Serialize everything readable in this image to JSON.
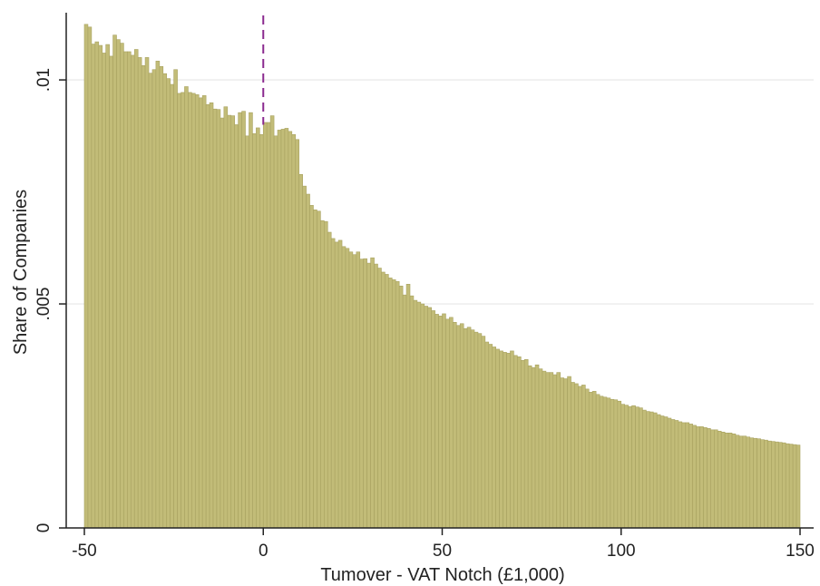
{
  "chart_data": {
    "type": "bar",
    "xlabel": "Tumover - VAT Notch (£1,000)",
    "ylabel": "Share of Companies",
    "xlim": [
      -50,
      150
    ],
    "ylim": [
      0,
      0.0115
    ],
    "x_ticks": [
      -50,
      0,
      50,
      100,
      150
    ],
    "x_tick_labels": [
      "-50",
      "0",
      "50",
      "100",
      "150"
    ],
    "y_ticks": [
      0,
      0.005,
      0.01
    ],
    "y_tick_labels": [
      "0",
      ".005",
      ".01"
    ],
    "grid": "horizontal",
    "bin_width": 1,
    "bin_start": -50,
    "notch_line_x": 0,
    "colors": {
      "bar_fill": "#c2bc78",
      "bar_edge": "#a8a260",
      "notch_line": "#8b2a8f",
      "grid": "#e6e6e6",
      "axis": "#222222"
    },
    "values": [
      0.01124,
      0.01118,
      0.0108,
      0.01085,
      0.01077,
      0.0106,
      0.01079,
      0.01053,
      0.011,
      0.0109,
      0.01082,
      0.01063,
      0.01063,
      0.01055,
      0.01068,
      0.0105,
      0.01032,
      0.0105,
      0.01015,
      0.01023,
      0.01042,
      0.0103,
      0.01014,
      0.01003,
      0.0099,
      0.01023,
      0.0097,
      0.00972,
      0.00985,
      0.00972,
      0.0097,
      0.00967,
      0.0096,
      0.00965,
      0.00945,
      0.00949,
      0.00935,
      0.00934,
      0.00915,
      0.0094,
      0.00921,
      0.0092,
      0.009,
      0.00927,
      0.0093,
      0.00875,
      0.00927,
      0.0088,
      0.00893,
      0.00878,
      0.00905,
      0.00905,
      0.0092,
      0.00875,
      0.00888,
      0.0089,
      0.00892,
      0.00885,
      0.00878,
      0.00867,
      0.00789,
      0.00763,
      0.00745,
      0.0072,
      0.0071,
      0.00707,
      0.00686,
      0.00684,
      0.0066,
      0.00646,
      0.00638,
      0.00642,
      0.00628,
      0.00624,
      0.00616,
      0.0061,
      0.00616,
      0.006,
      0.00601,
      0.00591,
      0.00603,
      0.00589,
      0.0058,
      0.00571,
      0.00566,
      0.00558,
      0.00554,
      0.0055,
      0.0054,
      0.0052,
      0.00544,
      0.00518,
      0.00508,
      0.00504,
      0.005,
      0.00495,
      0.00492,
      0.00485,
      0.00477,
      0.00473,
      0.00478,
      0.00466,
      0.0047,
      0.00459,
      0.00452,
      0.00456,
      0.00445,
      0.00448,
      0.00442,
      0.00437,
      0.00434,
      0.00428,
      0.00415,
      0.0041,
      0.00404,
      0.00399,
      0.00395,
      0.00392,
      0.0039,
      0.00395,
      0.00385,
      0.00382,
      0.00374,
      0.00376,
      0.00362,
      0.00358,
      0.00364,
      0.00355,
      0.0035,
      0.00347,
      0.00347,
      0.00342,
      0.00347,
      0.00335,
      0.00333,
      0.00338,
      0.00325,
      0.00322,
      0.00316,
      0.00319,
      0.0031,
      0.00303,
      0.00305,
      0.00298,
      0.00294,
      0.00292,
      0.0029,
      0.00287,
      0.00286,
      0.00283,
      0.00276,
      0.00274,
      0.00271,
      0.00273,
      0.0027,
      0.00268,
      0.00263,
      0.0026,
      0.00259,
      0.00257,
      0.00253,
      0.0025,
      0.00248,
      0.00245,
      0.00242,
      0.0024,
      0.00237,
      0.00235,
      0.00235,
      0.00232,
      0.00229,
      0.00226,
      0.00226,
      0.00224,
      0.00222,
      0.00219,
      0.00219,
      0.00216,
      0.00214,
      0.00212,
      0.00212,
      0.0021,
      0.00207,
      0.00205,
      0.00205,
      0.00203,
      0.00201,
      0.002,
      0.00199,
      0.00197,
      0.00196,
      0.00194,
      0.00193,
      0.00192,
      0.00191,
      0.0019,
      0.00188,
      0.00187,
      0.00186,
      0.00185
    ]
  }
}
